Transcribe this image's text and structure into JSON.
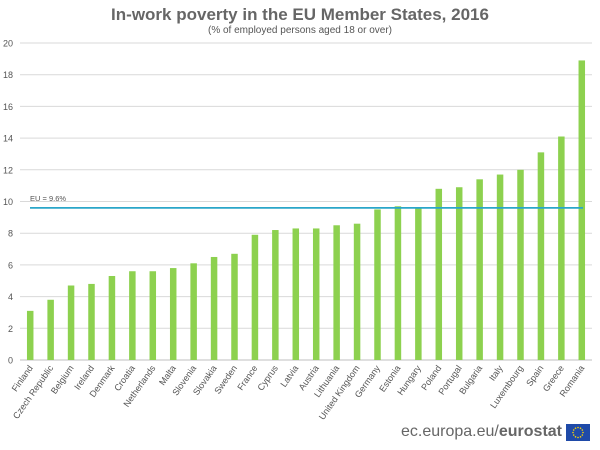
{
  "title": "In-work poverty in the EU Member States, 2016",
  "subtitle": "(% of employed persons aged 18 or over)",
  "footer": {
    "domain": "ec.europa.eu/",
    "brand": "eurostat"
  },
  "chart_data": {
    "type": "bar",
    "title": "In-work poverty in the EU Member States, 2016",
    "subtitle": "(% of employed persons aged 18 or over)",
    "categories": [
      "Finland",
      "Czech Republic",
      "Belgium",
      "Ireland",
      "Denmark",
      "Croatia",
      "Netherlands",
      "Malta",
      "Slovenia",
      "Slovakia",
      "Sweden",
      "France",
      "Cyprus",
      "Latvia",
      "Austria",
      "Lithuania",
      "United Kingdom",
      "Germany",
      "Estonia",
      "Hungary",
      "Poland",
      "Portugal",
      "Bulgaria",
      "Italy",
      "Luxembourg",
      "Spain",
      "Greece",
      "Romania"
    ],
    "values": [
      3.1,
      3.8,
      4.7,
      4.8,
      5.3,
      5.6,
      5.6,
      5.8,
      6.1,
      6.5,
      6.7,
      7.9,
      8.2,
      8.3,
      8.3,
      8.5,
      8.6,
      9.5,
      9.7,
      9.6,
      10.8,
      10.9,
      11.4,
      11.7,
      12.0,
      13.1,
      14.1,
      18.9
    ],
    "ylim": [
      0,
      20
    ],
    "yticks": [
      0,
      2,
      4,
      6,
      8,
      10,
      12,
      14,
      16,
      18,
      20
    ],
    "grid": true,
    "reference_line": {
      "label": "EU = 9.6%",
      "value": 9.6
    },
    "colors": {
      "bar": "#8dd14f",
      "reference_line": "#2aa6c9",
      "grid": "#d9d9d9"
    }
  }
}
